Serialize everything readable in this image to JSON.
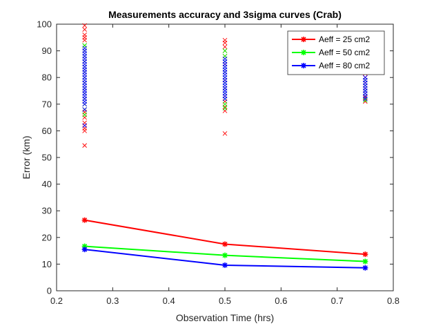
{
  "chart_data": {
    "type": "line",
    "title": "Measurements accuracy and 3sigma curves (Crab)",
    "xlabel": "Observation Time (hrs)",
    "ylabel": "Error (km)",
    "xlim": [
      0.2,
      0.8
    ],
    "ylim": [
      0,
      100
    ],
    "xticks": [
      0.2,
      0.3,
      0.4,
      0.5,
      0.6,
      0.7,
      0.8
    ],
    "xtick_labels": [
      "0.2",
      "0.3",
      "0.4",
      "0.5",
      "0.6",
      "0.7",
      "0.8"
    ],
    "yticks": [
      0,
      10,
      20,
      30,
      40,
      50,
      60,
      70,
      80,
      90,
      100
    ],
    "ytick_labels": [
      "0",
      "10",
      "20",
      "30",
      "40",
      "50",
      "60",
      "70",
      "80",
      "90",
      "100"
    ],
    "grid": false,
    "legend_position": "top-right",
    "x": [
      0.25,
      0.5,
      0.75
    ],
    "series": [
      {
        "name": "Aeff = 25 cm2",
        "color": "#ff0000",
        "values": [
          26.5,
          17.5,
          13.7
        ]
      },
      {
        "name": "Aeff = 50 cm2",
        "color": "#00ff00",
        "values": [
          16.7,
          13.3,
          11.0
        ]
      },
      {
        "name": "Aeff = 80 cm2",
        "color": "#0000ff",
        "values": [
          15.5,
          9.6,
          8.6
        ]
      }
    ],
    "scatter_measurements": [
      {
        "series": "Aeff = 25 cm2",
        "color": "#ff0000",
        "x": 0.25,
        "y": [
          54.5,
          60,
          61,
          62,
          63,
          65,
          66,
          67,
          68,
          70,
          72,
          74,
          76,
          78,
          80,
          82,
          84,
          86,
          88,
          90,
          92,
          94,
          95,
          96,
          98,
          99.5
        ]
      },
      {
        "series": "Aeff = 50 cm2",
        "color": "#00ff00",
        "x": 0.25,
        "y": [
          66,
          68,
          70,
          72,
          74,
          76,
          78,
          80,
          82,
          84,
          86,
          88,
          90,
          92
        ]
      },
      {
        "series": "Aeff = 80 cm2",
        "color": "#0000ff",
        "x": 0.25,
        "y": [
          62,
          68,
          70,
          71,
          72,
          73,
          74,
          75,
          76,
          77,
          78,
          79,
          80,
          81,
          82,
          83,
          84,
          85,
          86,
          87,
          88,
          89,
          90,
          91
        ]
      },
      {
        "series": "Aeff = 25 cm2",
        "color": "#ff0000",
        "x": 0.5,
        "y": [
          59,
          67.5,
          69,
          71,
          73,
          76,
          79,
          82,
          85,
          88,
          90,
          91.5,
          93,
          94
        ]
      },
      {
        "series": "Aeff = 50 cm2",
        "color": "#00ff00",
        "x": 0.5,
        "y": [
          68.5,
          70,
          72,
          74,
          76,
          78,
          80,
          82,
          84,
          86,
          88,
          90
        ]
      },
      {
        "series": "Aeff = 80 cm2",
        "color": "#0000ff",
        "x": 0.5,
        "y": [
          72,
          73,
          74,
          75,
          76,
          77,
          78,
          79,
          80,
          81,
          82,
          83,
          84,
          85,
          86,
          87
        ]
      },
      {
        "series": "Aeff = 25 cm2",
        "color": "#ff0000",
        "x": 0.75,
        "y": [
          71,
          72.5,
          74,
          76,
          78,
          80,
          81.5
        ]
      },
      {
        "series": "Aeff = 50 cm2",
        "color": "#00ff00",
        "x": 0.75,
        "y": [
          71.5,
          73,
          75,
          77,
          79
        ]
      },
      {
        "series": "Aeff = 80 cm2",
        "color": "#0000ff",
        "x": 0.75,
        "y": [
          72,
          73,
          74,
          75,
          76,
          77,
          78,
          79,
          80
        ]
      }
    ]
  }
}
